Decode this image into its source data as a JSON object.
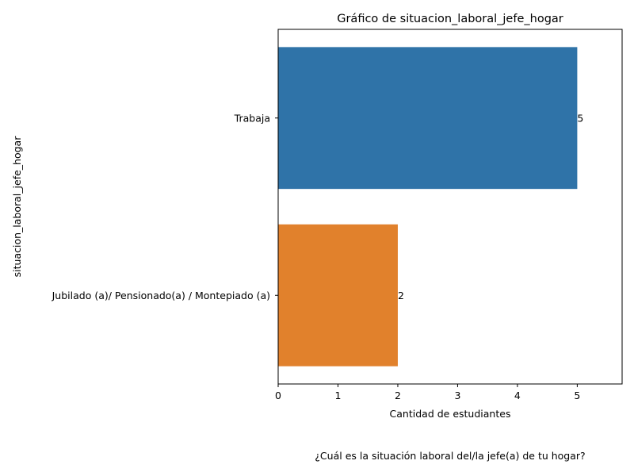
{
  "chart_data": {
    "type": "bar",
    "orientation": "horizontal",
    "title": "Gráfico de situacion_laboral_jefe_hogar",
    "xlabel": "Cantidad de estudiantes",
    "ylabel": "situacion_laboral_jefe_hogar",
    "categories": [
      "Trabaja",
      "Jubilado (a)/ Pensionado(a) / Montepiado (a)"
    ],
    "values": [
      5,
      2
    ],
    "data_labels": [
      "5",
      "2"
    ],
    "colors": [
      "#2f73a8",
      "#e1812c"
    ],
    "xlim": [
      0,
      5.75
    ],
    "xticks": [
      0,
      1,
      2,
      3,
      4,
      5
    ],
    "xtick_labels": [
      "0",
      "1",
      "2",
      "3",
      "4",
      "5"
    ],
    "grid": false,
    "legend": "none"
  },
  "caption": "¿Cuál es la situación laboral del/la jefe(a) de tu hogar?"
}
